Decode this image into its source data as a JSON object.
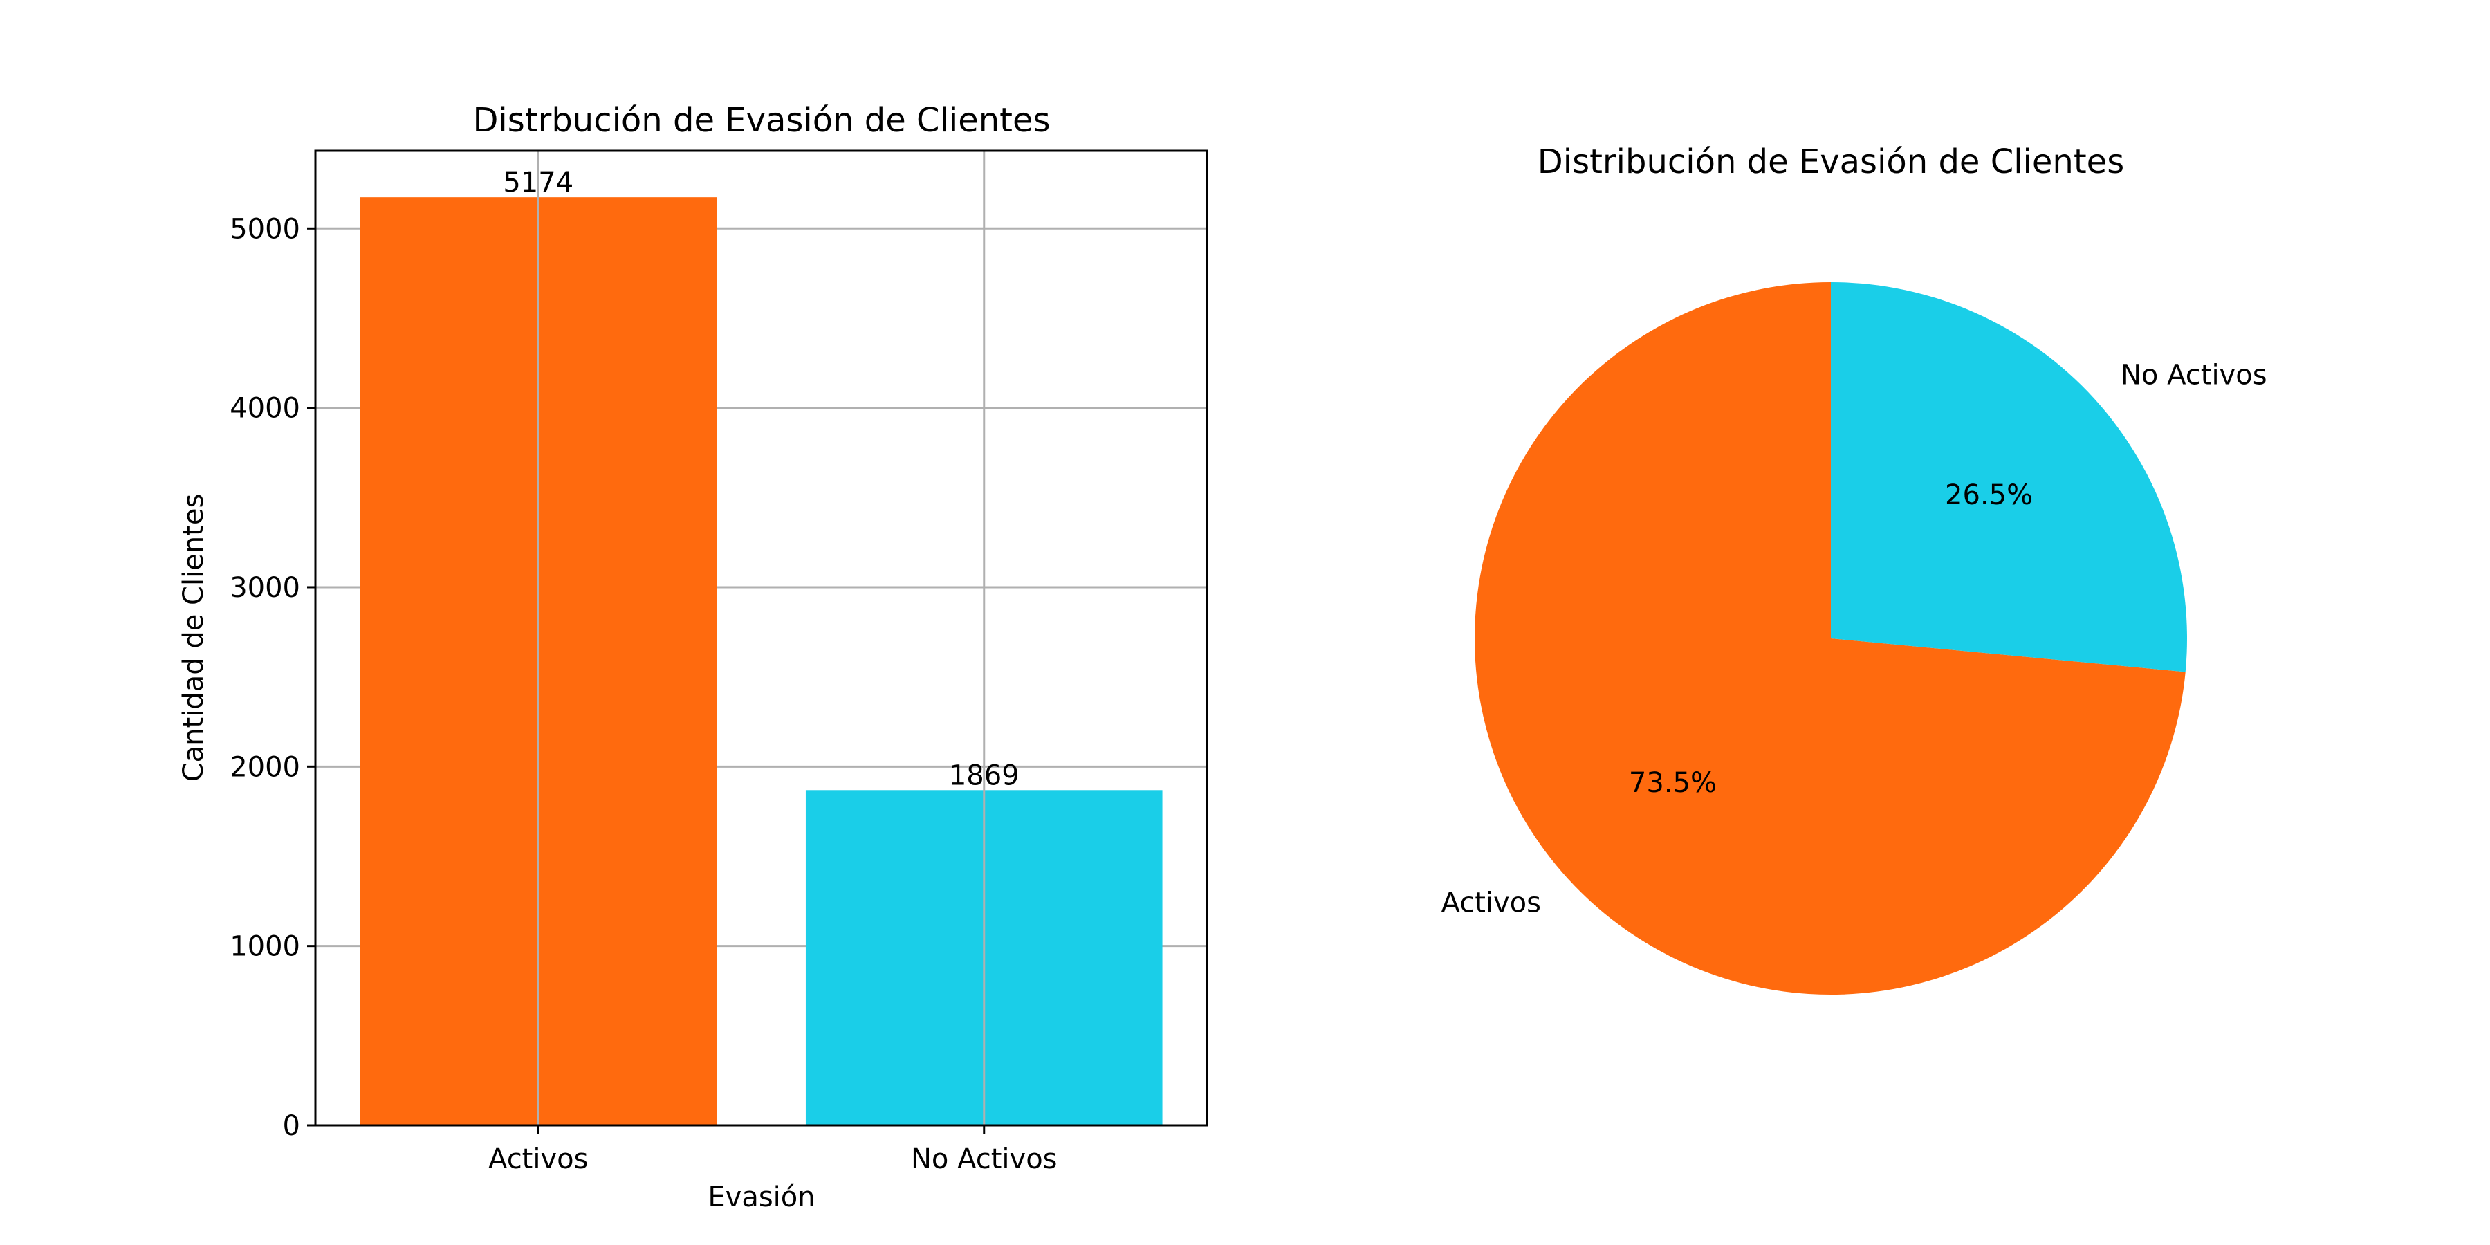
{
  "chart_data": [
    {
      "type": "bar",
      "title": "Distrbución de Evasión de Clientes",
      "xlabel": "Evasión",
      "ylabel": "Cantidad de Clientes",
      "categories": [
        "Activos",
        "No Activos"
      ],
      "values": [
        5174,
        1869
      ],
      "data_labels": [
        "5174",
        "1869"
      ],
      "colors": [
        "#ff6a0e",
        "#1acee8"
      ],
      "ylim": [
        0,
        5433
      ],
      "yticks": [
        0,
        1000,
        2000,
        3000,
        4000,
        5000
      ],
      "ytick_labels": [
        "0",
        "1000",
        "2000",
        "3000",
        "4000",
        "5000"
      ],
      "grid": true
    },
    {
      "type": "pie",
      "title": "Distribución de Evasión de Clientes",
      "labels": [
        "Activos",
        "No Activos"
      ],
      "values": [
        73.5,
        26.5
      ],
      "pct_labels": [
        "73.5%",
        "26.5%"
      ],
      "colors": [
        "#ff6a0e",
        "#1acee8"
      ]
    }
  ]
}
